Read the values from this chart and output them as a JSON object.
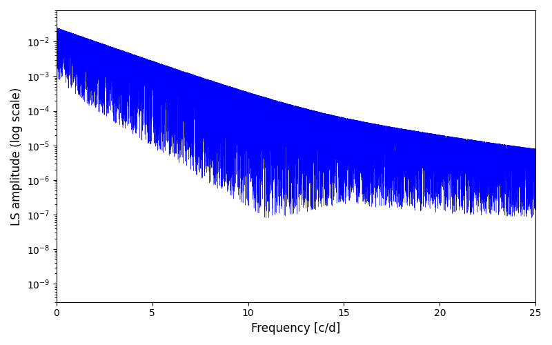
{
  "xlabel": "Frequency [c/d]",
  "ylabel": "LS amplitude (log scale)",
  "xlim": [
    0,
    25
  ],
  "ylim": [
    3e-10,
    0.08
  ],
  "line_color": "#0000ff",
  "background_color": "#ffffff",
  "seed": 77,
  "n_points": 15000,
  "freq_max": 25.0,
  "figsize": [
    8.0,
    5.0
  ],
  "dpi": 100
}
